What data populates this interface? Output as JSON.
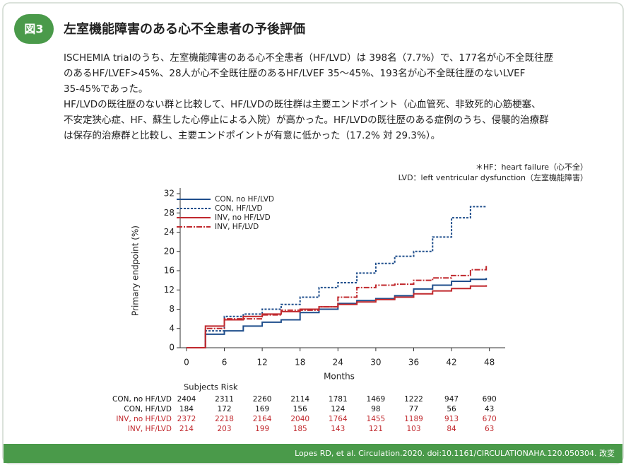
{
  "header": {
    "badge": "図3",
    "title": "左室機能障害のある心不全患者の予後評価"
  },
  "body": {
    "lines": [
      "ISCHEMIA trialのうち、左室機能障害のある心不全患者（HF/LVD）は 398名（7.7%）で、177名が心不全既往歴",
      "のあるHF/LVEF>45%、28人が心不全既往歴のあるHF/LVEF 35～45%、193名が心不全既往歴のないLVEF",
      "35-45%であった。",
      "HF/LVDの既往歴のない群と比較して、HF/LVDの既往群は主要エンドポイント（心血管死、非致死的心筋梗塞、",
      "不安定狭心症、HF、蘇生した心停止による入院）が高かった。HF/LVDの既往歴のある症例のうち、侵襲的治療群",
      "は保存的治療群と比較し、主要エンドポイントが有意に低かった（17.2% 対 29.3%）。"
    ]
  },
  "notes": [
    "＊HF：heart failure（心不全）",
    "LVD：left ventricular dysfunction（左室機能障害）"
  ],
  "chart_data": {
    "type": "step",
    "x_label": "Months",
    "y_label": "Primary endpoint (%)",
    "x": [
      0,
      3,
      6,
      9,
      12,
      15,
      18,
      21,
      24,
      27,
      30,
      33,
      36,
      39,
      42,
      45,
      47.5
    ],
    "series": [
      {
        "name": "CON, no HF/LVD",
        "color": "#1f4e8c",
        "dash": "none",
        "values": [
          0,
          2.8,
          3.5,
          4.5,
          5.3,
          5.8,
          7.3,
          8.0,
          9.2,
          9.8,
          10.2,
          10.8,
          12.2,
          13.0,
          13.8,
          14.2,
          14.5
        ]
      },
      {
        "name": "CON, HF/LVD",
        "color": "#1f4e8c",
        "dash": "3,2",
        "values": [
          0,
          3.5,
          6.5,
          7.0,
          8.0,
          9.0,
          10.5,
          12.5,
          13.5,
          15.5,
          17.5,
          19.0,
          20.0,
          23.0,
          27.0,
          29.3,
          29.3
        ]
      },
      {
        "name": "INV, no HF/LVD",
        "color": "#c0282d",
        "dash": "none",
        "values": [
          0,
          4.5,
          5.8,
          6.5,
          7.0,
          7.5,
          8.0,
          8.5,
          9.0,
          9.5,
          10.0,
          10.5,
          11.2,
          11.8,
          12.3,
          12.8,
          13.0
        ]
      },
      {
        "name": "INV, HF/LVD",
        "color": "#c0282d",
        "dash": "8,2,2,2",
        "values": [
          0,
          4.0,
          6.0,
          6.0,
          6.8,
          7.8,
          7.8,
          8.5,
          10.5,
          12.5,
          13.0,
          13.2,
          14.0,
          14.5,
          15.0,
          16.2,
          17.2
        ]
      }
    ],
    "xlim": [
      -1,
      50.5
    ],
    "xticks": [
      0,
      6,
      12,
      18,
      24,
      30,
      36,
      42,
      48
    ],
    "ylim": [
      0,
      32
    ],
    "yticks": [
      0,
      4,
      8,
      12,
      16,
      20,
      24,
      28,
      32
    ]
  },
  "risk_table": {
    "title": "Subjects Risk",
    "rows": [
      {
        "name": "CON, no HF/LVD",
        "color": "#111111",
        "values": [
          2404,
          2311,
          2260,
          2114,
          1781,
          1469,
          1222,
          947,
          690
        ]
      },
      {
        "name": "CON, HF/LVD",
        "color": "#111111",
        "values": [
          184,
          172,
          169,
          156,
          124,
          98,
          77,
          56,
          43
        ]
      },
      {
        "name": "INV, no HF/LVD",
        "color": "#c0282d",
        "values": [
          2372,
          2218,
          2164,
          2040,
          1764,
          1455,
          1189,
          913,
          670
        ]
      },
      {
        "name": "INV, HF/LVD",
        "color": "#c0282d",
        "values": [
          214,
          203,
          199,
          185,
          143,
          121,
          103,
          84,
          63
        ]
      }
    ]
  },
  "footer": "Lopes RD, et al. Circulation.2020. doi:10.1161/CIRCULATIONAHA.120.050304. 改変"
}
